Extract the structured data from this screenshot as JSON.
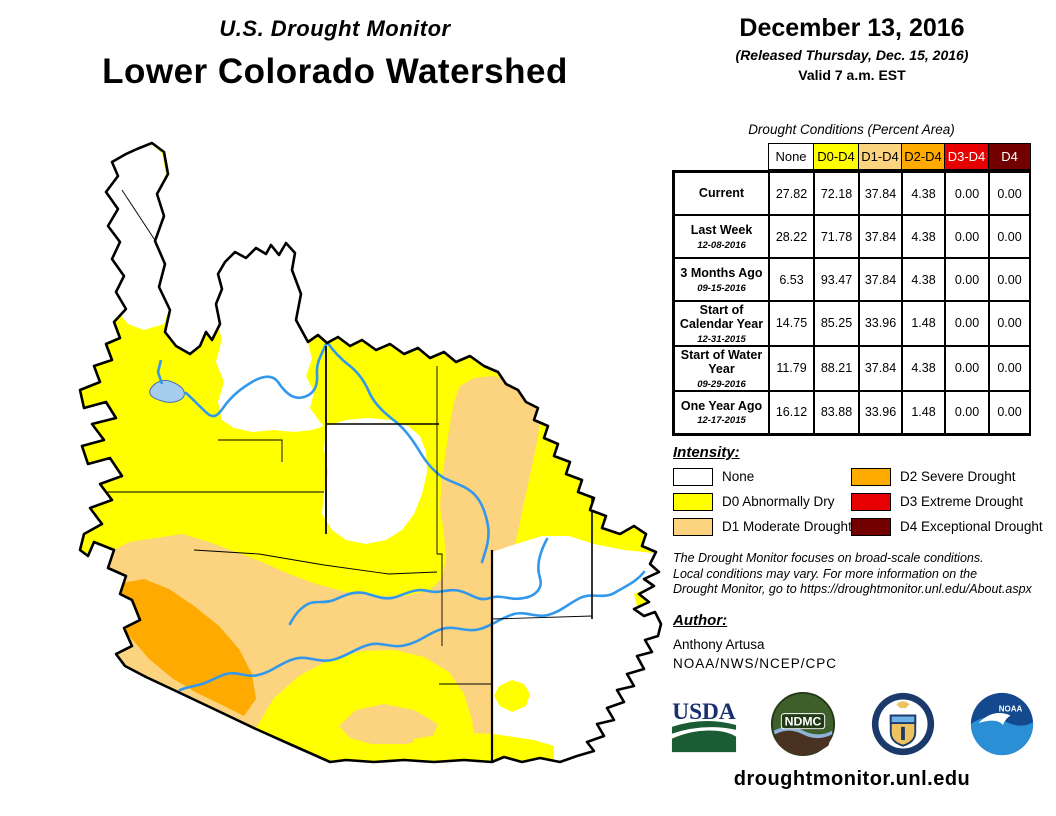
{
  "header": {
    "supertitle": "U.S. Drought Monitor",
    "title": "Lower Colorado Watershed"
  },
  "datebox": {
    "date": "December 13, 2016",
    "released": "(Released Thursday, Dec. 15, 2016)",
    "valid": "Valid 7 a.m. EST"
  },
  "colors": {
    "none": "#FFFFFF",
    "d0": "#FFFF00",
    "d1": "#FCD37F",
    "d2": "#FFAA00",
    "d3": "#E60000",
    "d4": "#730000",
    "river": "#3398EC",
    "lake": "#A6CDED",
    "lake_edge": "#4673B8",
    "boundary": "#000000"
  },
  "table": {
    "caption": "Drought Conditions (Percent Area)",
    "columns": [
      {
        "label": "None",
        "bg": "#FFFFFF",
        "fg": "#000000"
      },
      {
        "label": "D0-D4",
        "bg": "#FFFF00",
        "fg": "#000000"
      },
      {
        "label": "D1-D4",
        "bg": "#FCD37F",
        "fg": "#000000"
      },
      {
        "label": "D2-D4",
        "bg": "#FFAA00",
        "fg": "#000000"
      },
      {
        "label": "D3-D4",
        "bg": "#E60000",
        "fg": "#FFFFFF"
      },
      {
        "label": "D4",
        "bg": "#730000",
        "fg": "#FFFFFF"
      }
    ],
    "rows": [
      {
        "label": "Current",
        "date": "",
        "values": [
          "27.82",
          "72.18",
          "37.84",
          "4.38",
          "0.00",
          "0.00"
        ]
      },
      {
        "label": "Last Week",
        "date": "12-08-2016",
        "values": [
          "28.22",
          "71.78",
          "37.84",
          "4.38",
          "0.00",
          "0.00"
        ]
      },
      {
        "label": "3 Months Ago",
        "date": "09-15-2016",
        "values": [
          "6.53",
          "93.47",
          "37.84",
          "4.38",
          "0.00",
          "0.00"
        ]
      },
      {
        "label": "Start of Calendar Year",
        "date": "12-31-2015",
        "values": [
          "14.75",
          "85.25",
          "33.96",
          "1.48",
          "0.00",
          "0.00"
        ]
      },
      {
        "label": "Start of Water Year",
        "date": "09-29-2016",
        "values": [
          "11.79",
          "88.21",
          "37.84",
          "4.38",
          "0.00",
          "0.00"
        ]
      },
      {
        "label": "One Year Ago",
        "date": "12-17-2015",
        "values": [
          "16.12",
          "83.88",
          "33.96",
          "1.48",
          "0.00",
          "0.00"
        ]
      }
    ]
  },
  "legend": {
    "heading": "Intensity:",
    "col1": [
      {
        "key": "none",
        "label": "None"
      },
      {
        "key": "d0",
        "label": "D0 Abnormally Dry"
      },
      {
        "key": "d1",
        "label": "D1 Moderate Drought"
      }
    ],
    "col2": [
      {
        "key": "d2",
        "label": "D2 Severe Drought"
      },
      {
        "key": "d3",
        "label": "D3 Extreme Drought"
      },
      {
        "key": "d4",
        "label": "D4 Exceptional Drought"
      }
    ]
  },
  "disclaimer": {
    "line1": "The Drought Monitor focuses on broad-scale conditions.",
    "line2": "Local conditions may vary. For more information on the",
    "line3": "Drought Monitor, go to https://droughtmonitor.unl.edu/About.aspx"
  },
  "author": {
    "heading": "Author:",
    "name": "Anthony Artusa",
    "org": "NOAA/NWS/NCEP/CPC"
  },
  "footer": {
    "logos": [
      "USDA",
      "NDMC",
      "DOC",
      "NOAA"
    ],
    "url": "droughtmonitor.unl.edu"
  }
}
